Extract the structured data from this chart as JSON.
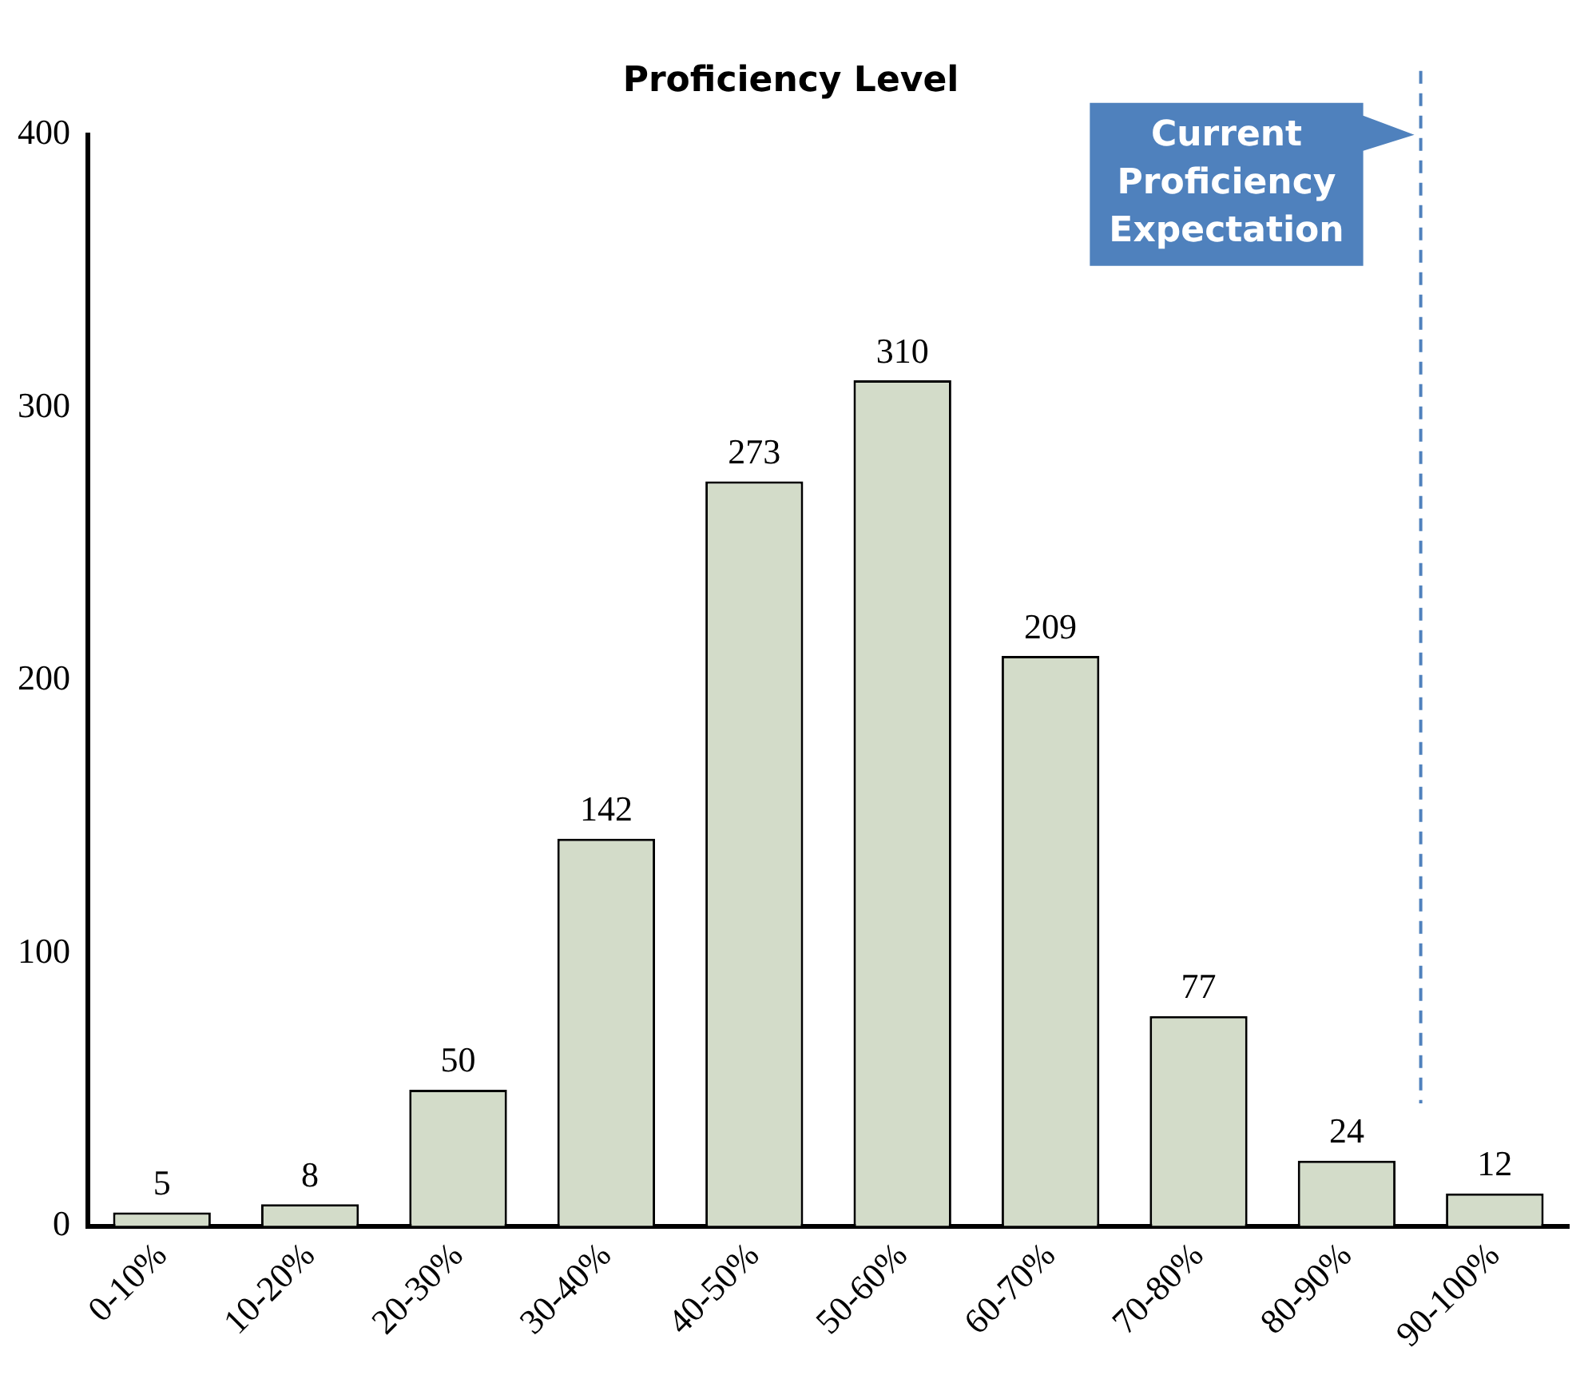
{
  "chart_data": {
    "type": "bar",
    "title": "Proficiency Level",
    "categories": [
      "0-10%",
      "10-20%",
      "20-30%",
      "30-40%",
      "40-50%",
      "50-60%",
      "60-70%",
      "70-80%",
      "80-90%",
      "90-100%"
    ],
    "values": [
      5,
      8,
      50,
      142,
      273,
      310,
      209,
      77,
      24,
      12
    ],
    "color": "#d3dcc9",
    "ylim": [
      0,
      400
    ],
    "yticks": [
      0,
      100,
      200,
      300,
      400
    ],
    "grid": false,
    "legend": false,
    "data_labels": true,
    "ref_lines": [
      {
        "axis": "x",
        "value": "90-100%",
        "label": "Current Proficiency Expectation",
        "color": "#4f81bd",
        "line_style": "dashed"
      }
    ]
  }
}
